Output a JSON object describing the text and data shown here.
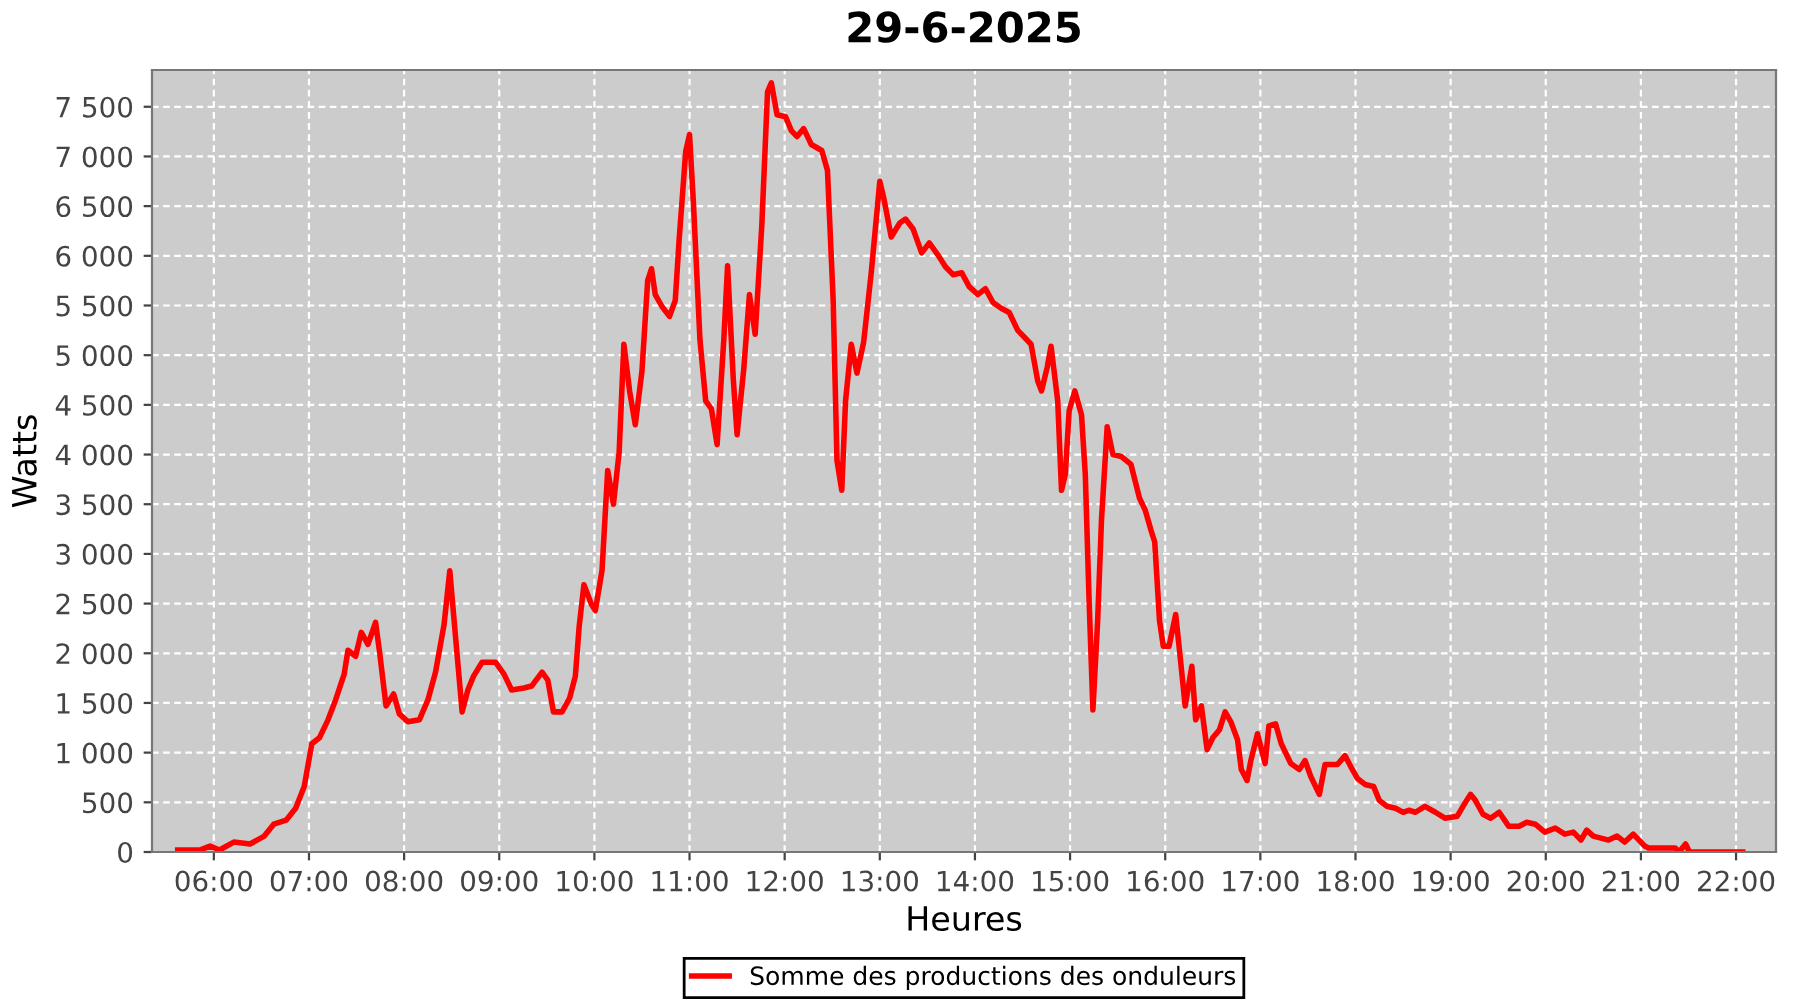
{
  "chart_data": {
    "type": "line",
    "title": "29-6-2025",
    "xlabel": "Heures",
    "ylabel": "Watts",
    "grid": true,
    "legend": "bottom",
    "marker": "none",
    "line_style": "solid",
    "xlim": [
      5.35,
      22.42
    ],
    "ylim": [
      0,
      7870
    ],
    "xticks": [
      {
        "value": 6,
        "label": "06:00"
      },
      {
        "value": 7,
        "label": "07:00"
      },
      {
        "value": 8,
        "label": "08:00"
      },
      {
        "value": 9,
        "label": "09:00"
      },
      {
        "value": 10,
        "label": "10:00"
      },
      {
        "value": 11,
        "label": "11:00"
      },
      {
        "value": 12,
        "label": "12:00"
      },
      {
        "value": 13,
        "label": "13:00"
      },
      {
        "value": 14,
        "label": "14:00"
      },
      {
        "value": 15,
        "label": "15:00"
      },
      {
        "value": 16,
        "label": "16:00"
      },
      {
        "value": 17,
        "label": "17:00"
      },
      {
        "value": 18,
        "label": "18:00"
      },
      {
        "value": 19,
        "label": "19:00"
      },
      {
        "value": 20,
        "label": "20:00"
      },
      {
        "value": 21,
        "label": "21:00"
      },
      {
        "value": 22,
        "label": "22:00"
      }
    ],
    "yticks": [
      0,
      500,
      {
        "value": 1000,
        "label": "1 000"
      },
      {
        "value": 1500,
        "label": "1 500"
      },
      {
        "value": 2000,
        "label": "2 000"
      },
      {
        "value": 2500,
        "label": "2 500"
      },
      {
        "value": 3000,
        "label": "3 000"
      },
      {
        "value": 3500,
        "label": "3 500"
      },
      {
        "value": 4000,
        "label": "4 000"
      },
      {
        "value": 4500,
        "label": "4 500"
      },
      {
        "value": 5000,
        "label": "5 000"
      },
      {
        "value": 5500,
        "label": "5 500"
      },
      {
        "value": 6000,
        "label": "6 000"
      },
      {
        "value": 6500,
        "label": "6 500"
      },
      {
        "value": 7000,
        "label": "7 000"
      },
      {
        "value": 7500,
        "label": "7 500"
      }
    ],
    "x": [
      5.62,
      5.85,
      5.96,
      6.06,
      6.21,
      6.38,
      6.53,
      6.63,
      6.76,
      6.86,
      6.95,
      7.03,
      7.11,
      7.2,
      7.28,
      7.37,
      7.41,
      7.49,
      7.55,
      7.62,
      7.7,
      7.74,
      7.81,
      7.89,
      7.95,
      8.04,
      8.16,
      8.25,
      8.33,
      8.42,
      8.48,
      8.54,
      8.61,
      8.67,
      8.73,
      8.82,
      8.96,
      9.05,
      9.13,
      9.26,
      9.34,
      9.45,
      9.51,
      9.57,
      9.66,
      9.74,
      9.8,
      9.84,
      9.89,
      9.97,
      10.01,
      10.08,
      10.14,
      10.2,
      10.26,
      10.31,
      10.37,
      10.43,
      10.5,
      10.56,
      10.6,
      10.64,
      10.71,
      10.79,
      10.85,
      10.89,
      10.96,
      11.0,
      11.04,
      11.11,
      11.17,
      11.23,
      11.29,
      11.36,
      11.4,
      11.46,
      11.5,
      11.57,
      11.63,
      11.69,
      11.76,
      11.82,
      11.86,
      11.92,
      12.01,
      12.07,
      12.13,
      12.2,
      12.28,
      12.39,
      12.45,
      12.51,
      12.55,
      12.6,
      12.64,
      12.7,
      12.76,
      12.83,
      12.91,
      13.0,
      13.04,
      13.12,
      13.21,
      13.27,
      13.35,
      13.44,
      13.52,
      13.61,
      13.69,
      13.77,
      13.86,
      13.94,
      14.03,
      14.11,
      14.19,
      14.28,
      14.36,
      14.45,
      14.53,
      14.59,
      14.66,
      14.7,
      14.76,
      14.8,
      14.87,
      14.91,
      14.95,
      14.99,
      15.05,
      15.12,
      15.16,
      15.2,
      15.24,
      15.29,
      15.33,
      15.39,
      15.45,
      15.54,
      15.64,
      15.73,
      15.79,
      15.85,
      15.89,
      15.94,
      15.98,
      16.04,
      16.11,
      16.15,
      16.21,
      16.28,
      16.32,
      16.38,
      16.44,
      16.5,
      16.57,
      16.63,
      16.69,
      16.76,
      16.8,
      16.86,
      16.9,
      16.97,
      17.05,
      17.09,
      17.16,
      17.22,
      17.32,
      17.41,
      17.47,
      17.53,
      17.62,
      17.68,
      17.74,
      17.81,
      17.89,
      17.95,
      18.02,
      18.1,
      18.19,
      18.25,
      18.33,
      18.42,
      18.5,
      18.56,
      18.63,
      18.73,
      18.84,
      18.94,
      19.07,
      19.13,
      19.21,
      19.26,
      19.34,
      19.42,
      19.51,
      19.61,
      19.72,
      19.8,
      19.89,
      19.99,
      20.1,
      20.2,
      20.29,
      20.37,
      20.43,
      20.5,
      20.58,
      20.66,
      20.75,
      20.83,
      20.92,
      20.98,
      21.04,
      21.08,
      21.23,
      21.36,
      21.4,
      21.47,
      21.51,
      21.82,
      22.07
    ],
    "series": [
      {
        "name": "Somme des productions des onduleurs",
        "color": "#ff0000",
        "values": [
          20,
          20,
          60,
          20,
          100,
          80,
          160,
          280,
          320,
          440,
          660,
          1090,
          1150,
          1330,
          1530,
          1790,
          2030,
          1970,
          2210,
          2090,
          2310,
          2030,
          1470,
          1590,
          1390,
          1310,
          1330,
          1530,
          1810,
          2290,
          2830,
          2170,
          1410,
          1630,
          1770,
          1910,
          1910,
          1790,
          1630,
          1650,
          1670,
          1810,
          1730,
          1410,
          1410,
          1550,
          1770,
          2270,
          2690,
          2490,
          2430,
          2830,
          3840,
          3500,
          4020,
          5110,
          4640,
          4300,
          4840,
          5750,
          5870,
          5610,
          5490,
          5390,
          5550,
          6150,
          7050,
          7220,
          6550,
          5150,
          4540,
          4460,
          4100,
          5150,
          5900,
          4760,
          4200,
          4860,
          5610,
          5210,
          6310,
          7650,
          7740,
          7420,
          7400,
          7260,
          7200,
          7280,
          7120,
          7060,
          6860,
          5550,
          3940,
          3640,
          4540,
          5110,
          4820,
          5130,
          5830,
          6750,
          6590,
          6190,
          6330,
          6370,
          6270,
          6030,
          6130,
          6010,
          5890,
          5810,
          5830,
          5690,
          5610,
          5670,
          5530,
          5470,
          5430,
          5250,
          5170,
          5110,
          4740,
          4640,
          4880,
          5090,
          4540,
          3640,
          3800,
          4440,
          4640,
          4400,
          3800,
          2530,
          1430,
          2330,
          3340,
          4280,
          4000,
          3980,
          3900,
          3560,
          3440,
          3240,
          3120,
          2330,
          2070,
          2070,
          2390,
          2030,
          1470,
          1870,
          1330,
          1470,
          1030,
          1150,
          1230,
          1410,
          1310,
          1130,
          830,
          720,
          920,
          1190,
          890,
          1270,
          1290,
          1090,
          890,
          830,
          920,
          760,
          580,
          880,
          880,
          880,
          970,
          860,
          740,
          680,
          660,
          520,
          460,
          440,
          400,
          420,
          400,
          460,
          400,
          340,
          360,
          460,
          580,
          520,
          380,
          340,
          400,
          260,
          260,
          300,
          280,
          200,
          240,
          180,
          200,
          120,
          220,
          160,
          140,
          120,
          160,
          100,
          180,
          120,
          60,
          40,
          40,
          40,
          0,
          80,
          0,
          0,
          0
        ]
      }
    ]
  }
}
